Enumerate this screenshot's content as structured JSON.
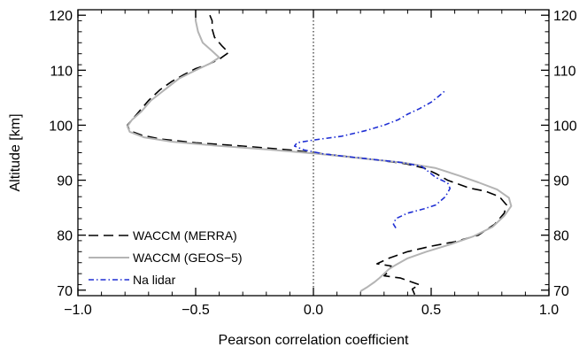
{
  "chart_data": {
    "type": "line",
    "title": "",
    "xlabel": "Pearson correlation coefficient",
    "ylabel": "Altitude [km]",
    "xlim": [
      -1.0,
      1.0
    ],
    "ylim": [
      69,
      121
    ],
    "xticks": [
      -1.0,
      -0.5,
      0.0,
      0.5,
      1.0
    ],
    "xtick_labels": [
      "−1.0",
      "−0.5",
      "0.0",
      "0.5",
      "1.0"
    ],
    "yticks": [
      70,
      80,
      90,
      100,
      110,
      120
    ],
    "ytick_labels": [
      "70",
      "80",
      "90",
      "100",
      "110",
      "120"
    ],
    "right_ytick_labels": [
      "70",
      "80",
      "90",
      "100",
      "110",
      "120"
    ],
    "zero_reference_line": 0.0,
    "grid": false,
    "legend_position": "bottom-left",
    "series": [
      {
        "name": "WACCM (MERRA)",
        "color": "#000000",
        "style": "dashed",
        "points": [
          [
            0.43,
            69.2
          ],
          [
            0.42,
            70.2
          ],
          [
            0.45,
            71.0
          ],
          [
            0.37,
            72.2
          ],
          [
            0.3,
            72.6
          ],
          [
            0.32,
            73.4
          ],
          [
            0.33,
            74.4
          ],
          [
            0.27,
            74.8
          ],
          [
            0.32,
            75.8
          ],
          [
            0.4,
            77.0
          ],
          [
            0.5,
            78.0
          ],
          [
            0.6,
            78.8
          ],
          [
            0.7,
            80.0
          ],
          [
            0.77,
            82.0
          ],
          [
            0.81,
            84.0
          ],
          [
            0.82,
            85.5
          ],
          [
            0.79,
            87.0
          ],
          [
            0.73,
            88.0
          ],
          [
            0.66,
            88.6
          ],
          [
            0.57,
            90.0
          ],
          [
            0.52,
            91.2
          ],
          [
            0.47,
            92.2
          ],
          [
            0.39,
            93.0
          ],
          [
            0.25,
            93.8
          ],
          [
            0.08,
            94.6
          ],
          [
            -0.1,
            95.5
          ],
          [
            -0.3,
            96.2
          ],
          [
            -0.5,
            96.8
          ],
          [
            -0.65,
            97.5
          ],
          [
            -0.73,
            98.2
          ],
          [
            -0.78,
            99.0
          ],
          [
            -0.79,
            100.0
          ],
          [
            -0.77,
            101.0
          ],
          [
            -0.74,
            102.5
          ],
          [
            -0.7,
            104.5
          ],
          [
            -0.65,
            106.5
          ],
          [
            -0.6,
            108.0
          ],
          [
            -0.55,
            109.2
          ],
          [
            -0.5,
            110.3
          ],
          [
            -0.45,
            111.0
          ],
          [
            -0.4,
            112.0
          ],
          [
            -0.36,
            113.2
          ],
          [
            -0.39,
            114.5
          ],
          [
            -0.42,
            116.0
          ],
          [
            -0.43,
            117.5
          ],
          [
            -0.43,
            119.0
          ],
          [
            -0.44,
            120.0
          ]
        ]
      },
      {
        "name": "WACCM (GEOS−5)",
        "color": "#b4b4b4",
        "style": "solid",
        "points": [
          [
            0.2,
            69.8
          ],
          [
            0.23,
            70.6
          ],
          [
            0.26,
            71.5
          ],
          [
            0.28,
            72.2
          ],
          [
            0.3,
            73.0
          ],
          [
            0.32,
            73.8
          ],
          [
            0.35,
            74.6
          ],
          [
            0.4,
            75.8
          ],
          [
            0.48,
            77.0
          ],
          [
            0.58,
            78.3
          ],
          [
            0.68,
            79.8
          ],
          [
            0.76,
            81.5
          ],
          [
            0.81,
            83.5
          ],
          [
            0.84,
            85.3
          ],
          [
            0.83,
            86.8
          ],
          [
            0.78,
            88.3
          ],
          [
            0.7,
            89.6
          ],
          [
            0.62,
            90.8
          ],
          [
            0.52,
            92.2
          ],
          [
            0.38,
            93.2
          ],
          [
            0.2,
            94.0
          ],
          [
            0.02,
            94.8
          ],
          [
            -0.2,
            95.6
          ],
          [
            -0.42,
            96.3
          ],
          [
            -0.6,
            97.0
          ],
          [
            -0.72,
            97.8
          ],
          [
            -0.78,
            98.8
          ],
          [
            -0.79,
            99.8
          ],
          [
            -0.77,
            101.0
          ],
          [
            -0.73,
            102.5
          ],
          [
            -0.69,
            104.5
          ],
          [
            -0.63,
            106.5
          ],
          [
            -0.57,
            108.5
          ],
          [
            -0.5,
            110.0
          ],
          [
            -0.44,
            111.2
          ],
          [
            -0.4,
            112.3
          ],
          [
            -0.43,
            113.5
          ],
          [
            -0.47,
            115.0
          ],
          [
            -0.49,
            117.0
          ],
          [
            -0.5,
            119.0
          ],
          [
            -0.5,
            121.0
          ]
        ]
      },
      {
        "name": "Na lidar",
        "color": "#1f2fd4",
        "style": "dashdot",
        "points": [
          [
            0.35,
            81.3
          ],
          [
            0.34,
            82.0
          ],
          [
            0.35,
            83.0
          ],
          [
            0.4,
            84.0
          ],
          [
            0.47,
            84.8
          ],
          [
            0.52,
            85.5
          ],
          [
            0.56,
            87.0
          ],
          [
            0.58,
            88.5
          ],
          [
            0.57,
            89.5
          ],
          [
            0.52,
            90.5
          ],
          [
            0.49,
            91.5
          ],
          [
            0.46,
            92.5
          ],
          [
            0.38,
            93.2
          ],
          [
            0.25,
            93.8
          ],
          [
            0.12,
            94.4
          ],
          [
            0.04,
            94.8
          ],
          [
            -0.04,
            95.5
          ],
          [
            -0.08,
            96.2
          ],
          [
            -0.07,
            96.8
          ],
          [
            0.0,
            97.3
          ],
          [
            0.12,
            98.0
          ],
          [
            0.22,
            99.0
          ],
          [
            0.3,
            100.0
          ],
          [
            0.36,
            101.0
          ],
          [
            0.4,
            102.0
          ],
          [
            0.45,
            103.0
          ],
          [
            0.5,
            104.2
          ],
          [
            0.53,
            105.2
          ],
          [
            0.56,
            106.3
          ]
        ]
      }
    ]
  }
}
